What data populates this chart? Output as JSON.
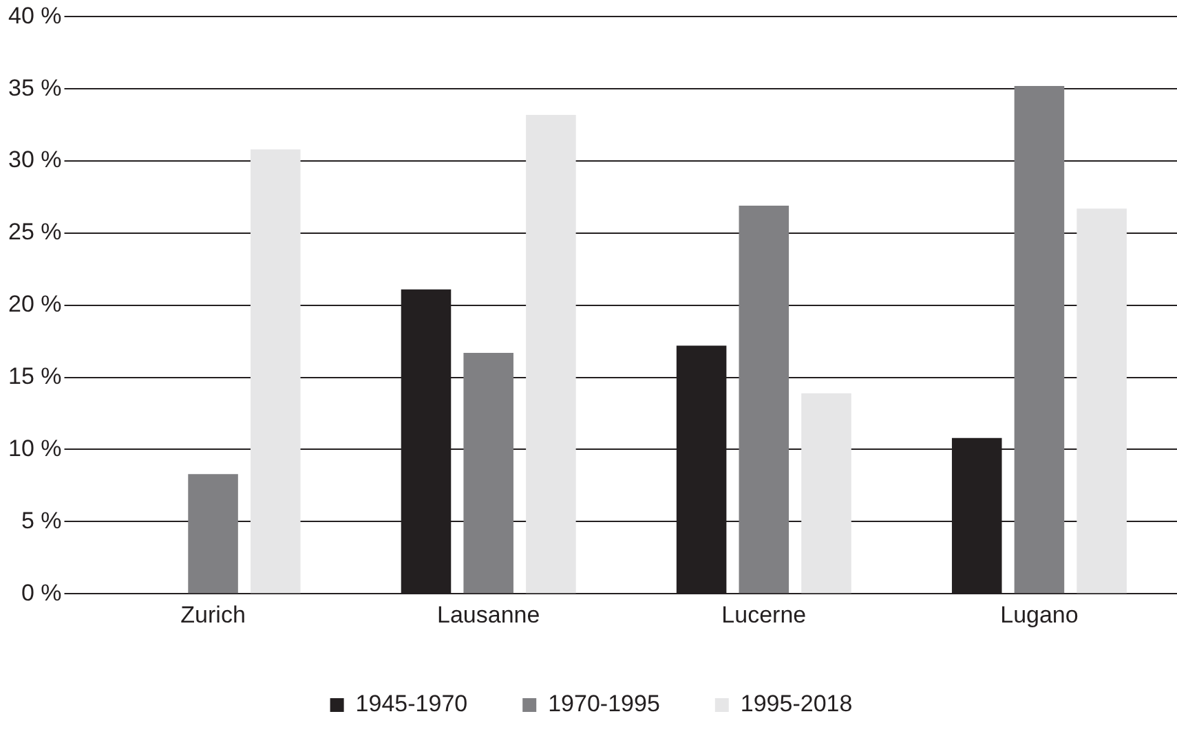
{
  "chart_data": {
    "type": "bar",
    "categories": [
      "Zurich",
      "Lausanne",
      "Lucerne",
      "Lugano"
    ],
    "series": [
      {
        "name": "1945-1970",
        "color": "#231f20",
        "values": [
          0,
          21.1,
          17.2,
          10.8
        ]
      },
      {
        "name": "1970-1995",
        "color": "#808083",
        "values": [
          8.3,
          16.7,
          26.9,
          35.2
        ]
      },
      {
        "name": "1995-2018",
        "color": "#e6e6e7",
        "values": [
          30.8,
          33.2,
          13.9,
          26.7
        ]
      }
    ],
    "ylim": [
      0,
      40
    ],
    "yticks": [
      {
        "value": 0,
        "label": "0 %"
      },
      {
        "value": 5,
        "label": "5 %"
      },
      {
        "value": 10,
        "label": "10 %"
      },
      {
        "value": 15,
        "label": "15 %"
      },
      {
        "value": 20,
        "label": "20 %"
      },
      {
        "value": 25,
        "label": "25 %"
      },
      {
        "value": 30,
        "label": "30 %"
      },
      {
        "value": 35,
        "label": "35 %"
      },
      {
        "value": 40,
        "label": "40 %"
      }
    ],
    "grid": "y",
    "legend": "bottom"
  }
}
